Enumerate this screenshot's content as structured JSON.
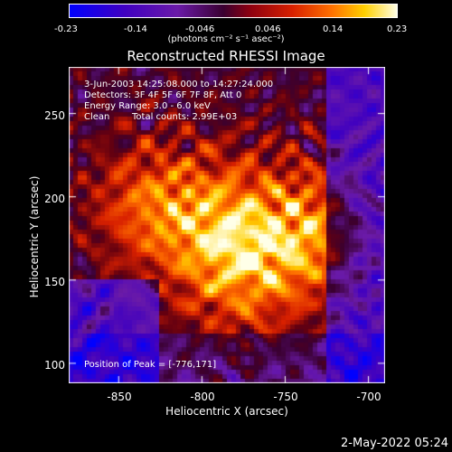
{
  "colorbar": {
    "ticks": [
      "-0.23",
      "-0.14",
      "-0.046",
      "0.046",
      "0.14",
      "0.23"
    ],
    "units": "(photons cm⁻² s⁻¹ asec⁻²)"
  },
  "plot": {
    "title": "Reconstructed RHESSI Image",
    "xlabel": "Heliocentric X (arcsec)",
    "ylabel": "Heliocentric Y (arcsec)",
    "x_ticks": [
      "-850",
      "-800",
      "-750",
      "-700"
    ],
    "y_ticks": [
      "250",
      "200",
      "150",
      "100"
    ],
    "x_range": [
      -880,
      -690
    ],
    "y_range": [
      88,
      278
    ],
    "peak": [
      -776,
      171
    ]
  },
  "annotations": {
    "time": "3-Jun-2003 14:25:08.000 to 14:27:24.000",
    "detectors": "Detectors: 3F 4F 5F 6F 7F 8F, Att 0",
    "energy": "Energy Range: 3.0 - 6.0 keV",
    "method": "Clean",
    "counts": "Total counts: 2.99E+03",
    "peak_position": "Position of Peak = [-776,171]"
  },
  "footer": {
    "timestamp": "2-May-2022 05:24"
  },
  "colors": {
    "colormap": [
      "#0000ff",
      "#4000c0",
      "#6a1aa8",
      "#3a0030",
      "#8c0010",
      "#d82000",
      "#ff7000",
      "#ffd000",
      "#ffffe8"
    ],
    "axis": "#ffffff"
  }
}
